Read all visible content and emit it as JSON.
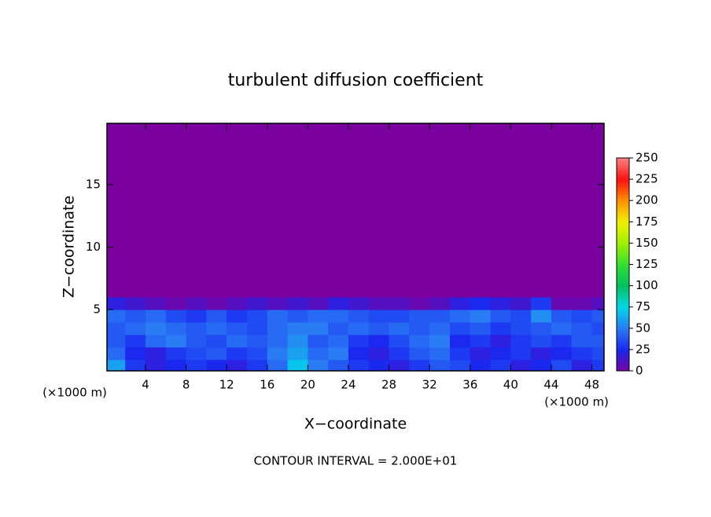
{
  "chart_data": {
    "type": "heatmap",
    "title": "turbulent diffusion coefficient",
    "x_label": "X−coordinate",
    "y_label": "Z−coordinate",
    "x_unit": "(×1000 m)",
    "y_unit": "(×1000 m)",
    "note": "CONTOUR INTERVAL = 2.000E+01",
    "xlim": [
      0.2,
      49.2
    ],
    "xticks": [
      4,
      8,
      12,
      16,
      20,
      24,
      28,
      32,
      36,
      40,
      44,
      48
    ],
    "ylim": [
      0.1,
      19.9
    ],
    "yticks": [
      5,
      10,
      15
    ],
    "x_edges": [
      0,
      2,
      4,
      6,
      8,
      10,
      12,
      14,
      16,
      18,
      20,
      22,
      24,
      26,
      28,
      30,
      32,
      34,
      36,
      38,
      40,
      42,
      44,
      46,
      48,
      50
    ],
    "z_edges": [
      0,
      1,
      2,
      3,
      4,
      5,
      6,
      20
    ],
    "values": [
      [
        60,
        30,
        20,
        25,
        30,
        25,
        20,
        30,
        45,
        70,
        50,
        40,
        30,
        25,
        20,
        30,
        40,
        35,
        25,
        30,
        20,
        25,
        35,
        20,
        30
      ],
      [
        45,
        25,
        20,
        30,
        35,
        40,
        30,
        35,
        50,
        60,
        45,
        50,
        25,
        20,
        30,
        40,
        45,
        30,
        20,
        25,
        30,
        20,
        25,
        30,
        35
      ],
      [
        40,
        30,
        45,
        50,
        40,
        35,
        45,
        40,
        45,
        55,
        40,
        45,
        30,
        25,
        35,
        45,
        50,
        25,
        30,
        20,
        30,
        35,
        30,
        40,
        40
      ],
      [
        40,
        45,
        50,
        45,
        40,
        45,
        40,
        35,
        45,
        50,
        50,
        40,
        45,
        40,
        45,
        40,
        45,
        35,
        40,
        30,
        35,
        40,
        45,
        40,
        35
      ],
      [
        45,
        40,
        45,
        35,
        30,
        40,
        30,
        35,
        45,
        40,
        45,
        45,
        40,
        35,
        35,
        40,
        40,
        45,
        50,
        40,
        35,
        55,
        40,
        35,
        40
      ],
      [
        20,
        15,
        10,
        5,
        10,
        5,
        10,
        15,
        10,
        15,
        10,
        20,
        15,
        10,
        10,
        5,
        10,
        20,
        25,
        20,
        15,
        30,
        5,
        5,
        10
      ],
      [
        0,
        0,
        0,
        0,
        0,
        0,
        0,
        0,
        0,
        0,
        0,
        0,
        0,
        0,
        0,
        0,
        0,
        0,
        0,
        0,
        0,
        0,
        0,
        0,
        0
      ]
    ],
    "clim": [
      0,
      250
    ],
    "cbar_ticks": [
      0,
      25,
      50,
      75,
      100,
      125,
      150,
      175,
      200,
      225,
      250
    ],
    "colormap": [
      "#7a00a0",
      "#1a28f0",
      "#2a7cf5",
      "#00d8e8",
      "#00c060",
      "#30e030",
      "#a0f000",
      "#f0f000",
      "#ff9000",
      "#ff1010",
      "#ff8080"
    ]
  }
}
